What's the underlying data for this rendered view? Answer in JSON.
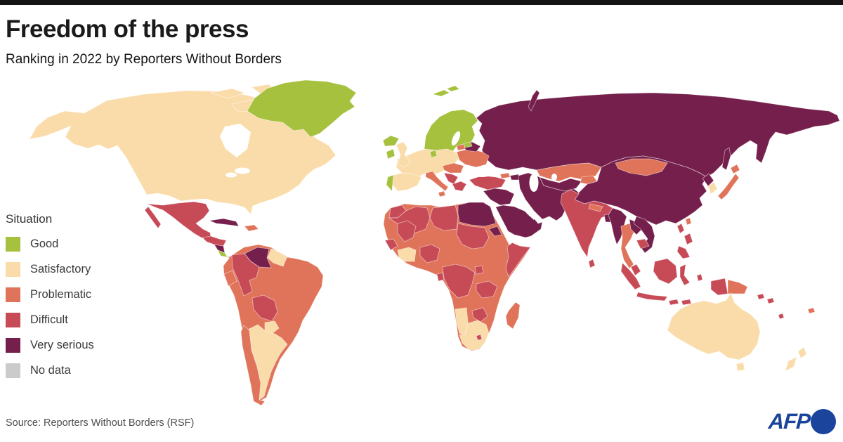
{
  "header": {
    "title": "Freedom of the press",
    "subtitle": "Ranking in 2022 by Reporters Without Borders"
  },
  "legend": {
    "heading": "Situation",
    "items": [
      {
        "key": "good",
        "label": "Good",
        "color": "#A5C13D"
      },
      {
        "key": "satisfactory",
        "label": "Satisfactory",
        "color": "#FADCAB"
      },
      {
        "key": "problematic",
        "label": "Problematic",
        "color": "#E0745A"
      },
      {
        "key": "difficult",
        "label": "Difficult",
        "color": "#C74B57"
      },
      {
        "key": "very_serious",
        "label": "Very serious",
        "color": "#75204C"
      },
      {
        "key": "no_data",
        "label": "No data",
        "color": "#CBCBCB"
      }
    ]
  },
  "map": {
    "description": "World choropleth map of press freedom situation by country, 2022 RSF ranking",
    "regions": [
      {
        "name": "greenland",
        "category": "good"
      },
      {
        "name": "svalbard",
        "category": "good"
      },
      {
        "name": "iceland",
        "category": "good"
      },
      {
        "name": "scandinavia",
        "category": "good"
      },
      {
        "name": "denmark",
        "category": "good"
      },
      {
        "name": "estonia",
        "category": "good"
      },
      {
        "name": "ireland",
        "category": "good"
      },
      {
        "name": "portugal",
        "category": "good"
      },
      {
        "name": "costa-rica",
        "category": "good"
      },
      {
        "name": "north-america",
        "category": "satisfactory"
      },
      {
        "name": "arctic-islands",
        "category": "satisfactory"
      },
      {
        "name": "united-kingdom",
        "category": "satisfactory"
      },
      {
        "name": "iberia",
        "category": "satisfactory"
      },
      {
        "name": "central-europe",
        "category": "satisfactory"
      },
      {
        "name": "guyanas",
        "category": "satisfactory"
      },
      {
        "name": "paraguay",
        "category": "satisfactory"
      },
      {
        "name": "argentina",
        "category": "satisfactory"
      },
      {
        "name": "namibia",
        "category": "satisfactory"
      },
      {
        "name": "south-africa",
        "category": "satisfactory"
      },
      {
        "name": "ghana-ivory-coast",
        "category": "satisfactory"
      },
      {
        "name": "south-korea",
        "category": "satisfactory"
      },
      {
        "name": "australia",
        "category": "satisfactory"
      },
      {
        "name": "new-zealand",
        "category": "satisfactory"
      },
      {
        "name": "south-america-mainland",
        "category": "problematic"
      },
      {
        "name": "africa-mainland",
        "category": "problematic"
      },
      {
        "name": "panama",
        "category": "problematic"
      },
      {
        "name": "hispaniola",
        "category": "problematic"
      },
      {
        "name": "ecuador",
        "category": "problematic"
      },
      {
        "name": "chile",
        "category": "problematic"
      },
      {
        "name": "madagascar",
        "category": "problematic"
      },
      {
        "name": "italy",
        "category": "problematic"
      },
      {
        "name": "hungary-romania",
        "category": "problematic"
      },
      {
        "name": "ukraine",
        "category": "problematic"
      },
      {
        "name": "baltic-states",
        "category": "problematic"
      },
      {
        "name": "georgia",
        "category": "problematic"
      },
      {
        "name": "kazakhstan",
        "category": "problematic"
      },
      {
        "name": "kyrgyzstan-tajikistan",
        "category": "problematic"
      },
      {
        "name": "mongolia",
        "category": "problematic"
      },
      {
        "name": "japan",
        "category": "problematic"
      },
      {
        "name": "taiwan",
        "category": "problematic"
      },
      {
        "name": "nepal",
        "category": "problematic"
      },
      {
        "name": "thailand",
        "category": "problematic"
      },
      {
        "name": "papua-new-guinea",
        "category": "problematic"
      },
      {
        "name": "new-caledonia",
        "category": "problematic"
      },
      {
        "name": "mexico",
        "category": "difficult"
      },
      {
        "name": "guatemala-honduras",
        "category": "difficult"
      },
      {
        "name": "colombia",
        "category": "difficult"
      },
      {
        "name": "bolivia",
        "category": "difficult"
      },
      {
        "name": "morocco",
        "category": "difficult"
      },
      {
        "name": "algeria",
        "category": "difficult"
      },
      {
        "name": "libya",
        "category": "difficult"
      },
      {
        "name": "mali",
        "category": "difficult"
      },
      {
        "name": "senegal-guinea",
        "category": "difficult"
      },
      {
        "name": "nigeria",
        "category": "difficult"
      },
      {
        "name": "sudan",
        "category": "difficult"
      },
      {
        "name": "somalia",
        "category": "difficult"
      },
      {
        "name": "gabon",
        "category": "difficult"
      },
      {
        "name": "drc",
        "category": "difficult"
      },
      {
        "name": "uganda",
        "category": "difficult"
      },
      {
        "name": "tanzania",
        "category": "difficult"
      },
      {
        "name": "zimbabwe",
        "category": "difficult"
      },
      {
        "name": "lesotho",
        "category": "difficult"
      },
      {
        "name": "turkey",
        "category": "difficult"
      },
      {
        "name": "greece",
        "category": "difficult"
      },
      {
        "name": "balkans",
        "category": "difficult"
      },
      {
        "name": "india",
        "category": "difficult"
      },
      {
        "name": "sri-lanka",
        "category": "difficult"
      },
      {
        "name": "cambodia",
        "category": "difficult"
      },
      {
        "name": "malaysia",
        "category": "difficult"
      },
      {
        "name": "indonesia",
        "category": "difficult"
      },
      {
        "name": "philippines",
        "category": "difficult"
      },
      {
        "name": "solomon-islands",
        "category": "difficult"
      },
      {
        "name": "fiji",
        "category": "difficult"
      },
      {
        "name": "nicaragua",
        "category": "very_serious"
      },
      {
        "name": "cuba",
        "category": "very_serious"
      },
      {
        "name": "venezuela",
        "category": "very_serious"
      },
      {
        "name": "belarus",
        "category": "very_serious"
      },
      {
        "name": "russia",
        "category": "very_serious"
      },
      {
        "name": "azerbaijan",
        "category": "very_serious"
      },
      {
        "name": "syria-iraq",
        "category": "very_serious"
      },
      {
        "name": "arabian-peninsula",
        "category": "very_serious"
      },
      {
        "name": "egypt",
        "category": "very_serious"
      },
      {
        "name": "eritrea",
        "category": "very_serious"
      },
      {
        "name": "iran-afghanistan-pakistan",
        "category": "very_serious"
      },
      {
        "name": "uzbekistan-turkmenistan",
        "category": "very_serious"
      },
      {
        "name": "china",
        "category": "very_serious"
      },
      {
        "name": "north-korea",
        "category": "very_serious"
      },
      {
        "name": "myanmar",
        "category": "very_serious"
      },
      {
        "name": "laos",
        "category": "very_serious"
      },
      {
        "name": "vietnam",
        "category": "very_serious"
      },
      {
        "name": "bangladesh",
        "category": "very_serious"
      }
    ]
  },
  "footer": {
    "source": "Source: Reporters Without Borders (RSF)",
    "brand": "AFP",
    "brand_color": "#1B449C"
  }
}
